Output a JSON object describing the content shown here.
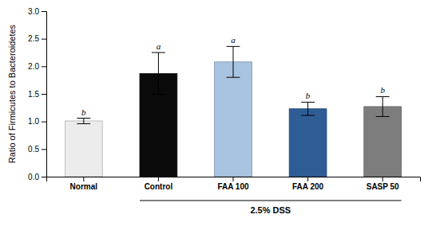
{
  "chart_data": {
    "type": "bar",
    "categories": [
      "Normal",
      "Control",
      "FAA 100",
      "FAA 200",
      "SASP 50"
    ],
    "values": [
      1.01,
      1.87,
      2.08,
      1.23,
      1.27
    ],
    "errors": [
      0.05,
      0.38,
      0.28,
      0.12,
      0.18
    ],
    "colors": [
      "#ececec",
      "#0a0a0a",
      "#a8c4e0",
      "#2e5d96",
      "#7d7d7d"
    ],
    "significance": [
      "b",
      "a",
      "a",
      "b",
      "b"
    ],
    "ylabel": "Ratio of Firmicutes to Bacteroidetes",
    "annotations": [
      {
        "text": "2.5% DSS",
        "from": "Control",
        "to": "SASP 50"
      }
    ],
    "ylim": [
      0,
      3
    ],
    "yticks": [
      {
        "value": 0,
        "label": "0.0"
      },
      0.5,
      {
        "value": 1.0,
        "label": "1.0"
      },
      1.5,
      {
        "value": 2.0,
        "label": "2.0"
      },
      2.5,
      {
        "value": 3.0,
        "label": "3.0"
      }
    ]
  }
}
